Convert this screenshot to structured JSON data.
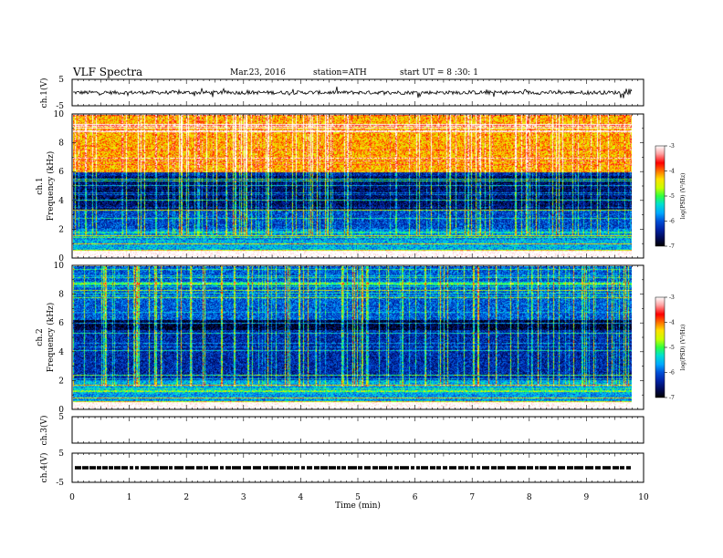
{
  "header": {
    "title": "VLF  Spectra",
    "date": "Mar.23, 2016",
    "station": "station=ATH",
    "start_ut": "start  UT =   8  :30: 1"
  },
  "colors": {
    "background": "#ffffff",
    "axis": "#000000",
    "trace": "#000000",
    "spectrogram_scale": [
      "#000000",
      "#000a55",
      "#0024a8",
      "#0050d8",
      "#00a8ff",
      "#00e0d0",
      "#30ff40",
      "#c8ff00",
      "#ffe000",
      "#ff7000",
      "#ff0000",
      "#ffa0a0",
      "#ffffff"
    ]
  },
  "chart_data": [
    {
      "type": "line",
      "panel": "ch.1",
      "ylabel": "ch.1(V)",
      "ylim": [
        -5,
        5
      ],
      "y_ticks": [
        "5",
        "-5"
      ],
      "baseline_value": 0,
      "noise_amplitude": 0.7,
      "spike_amplitude": 1.8,
      "x_extent_min": 9.8
    },
    {
      "type": "heatmap",
      "panel": "ch.1",
      "ylabel": [
        "ch.1",
        "Frequency  (kHz)"
      ],
      "ylim": [
        0,
        10
      ],
      "y_ticks": [
        "0",
        "2",
        "4",
        "6",
        "8",
        "10"
      ],
      "x_extent_min": 9.8,
      "bands": [
        {
          "from": 6.0,
          "to": 10.0,
          "level": -4.2
        },
        {
          "from": 5.7,
          "to": 6.0,
          "level": -6.3
        },
        {
          "from": 3.3,
          "to": 5.7,
          "level": -6.6
        },
        {
          "from": 2.0,
          "to": 3.3,
          "level": -6.1
        },
        {
          "from": 1.2,
          "to": 2.0,
          "level": -5.8
        },
        {
          "from": 0.0,
          "to": 1.2,
          "level": -5.6
        }
      ],
      "colorbar": {
        "label": "log(PSD) (V²/Hz)",
        "ticks": [
          "-3",
          "-4",
          "-5",
          "-6",
          "-7"
        ],
        "range": [
          -7,
          -3
        ]
      }
    },
    {
      "type": "heatmap",
      "panel": "ch.2",
      "ylabel": [
        "ch.2",
        "Frequency  (kHz)"
      ],
      "ylim": [
        0,
        10
      ],
      "y_ticks": [
        "0",
        "2",
        "4",
        "6",
        "8",
        "10"
      ],
      "x_extent_min": 9.8,
      "bands": [
        {
          "from": 6.2,
          "to": 10.0,
          "level": -6.0
        },
        {
          "from": 5.5,
          "to": 6.2,
          "level": -6.8
        },
        {
          "from": 2.0,
          "to": 5.5,
          "level": -6.3
        },
        {
          "from": 1.0,
          "to": 2.0,
          "level": -5.6
        },
        {
          "from": 0.0,
          "to": 1.0,
          "level": -5.7
        }
      ],
      "colorbar": {
        "label": "log(PSD) (V²/Hz)",
        "ticks": [
          "-3",
          "-4",
          "-5",
          "-6",
          "-7"
        ],
        "range": [
          -7,
          -3
        ]
      }
    },
    {
      "type": "line",
      "panel": "ch.3",
      "ylabel": "ch.3(V)",
      "ylim": [
        -5,
        5
      ],
      "y_ticks": [
        "5"
      ],
      "values": []
    },
    {
      "type": "line",
      "panel": "ch.4",
      "ylabel": "ch.4(V)",
      "ylim": [
        -5,
        5
      ],
      "y_ticks": [
        "5",
        "-5"
      ],
      "baseline_value": 0,
      "x_extent_min": 9.8
    }
  ],
  "xaxis": {
    "label": "Time  (min)",
    "ticks": [
      "0",
      "1",
      "2",
      "3",
      "4",
      "5",
      "6",
      "7",
      "8",
      "9",
      "10"
    ],
    "xlim": [
      0,
      10
    ]
  }
}
